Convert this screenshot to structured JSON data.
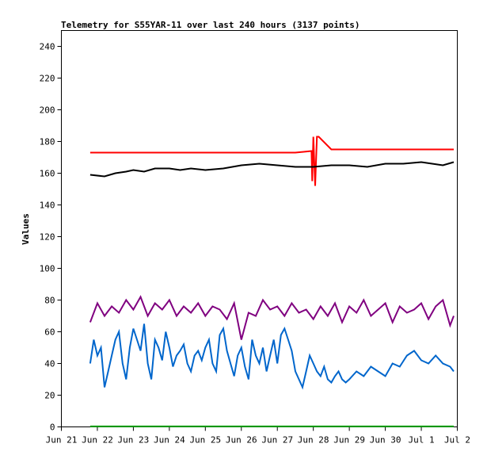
{
  "chart_data": {
    "type": "line",
    "title": "Telemetry for S55YAR-11 over last 240 hours (3137 points)",
    "ylabel": "Values",
    "xlabel": "",
    "ylim": [
      0,
      250
    ],
    "yticks": [
      0,
      20,
      40,
      60,
      80,
      100,
      120,
      140,
      160,
      180,
      200,
      220,
      240
    ],
    "xlim_days": [
      0,
      11
    ],
    "xticks": [
      {
        "day": 0,
        "label": "Jun 21"
      },
      {
        "day": 1,
        "label": "Jun 22"
      },
      {
        "day": 2,
        "label": "Jun 23"
      },
      {
        "day": 3,
        "label": "Jun 24"
      },
      {
        "day": 4,
        "label": "Jun 25"
      },
      {
        "day": 5,
        "label": "Jun 26"
      },
      {
        "day": 6,
        "label": "Jun 27"
      },
      {
        "day": 7,
        "label": "Jun 28"
      },
      {
        "day": 8,
        "label": "Jun 29"
      },
      {
        "day": 9,
        "label": "Jun 30"
      },
      {
        "day": 10,
        "label": "Jul 1"
      },
      {
        "day": 11,
        "label": "Jul 2"
      }
    ],
    "grid": false,
    "series": [
      {
        "color": "#ff0000",
        "x": [
          0.8,
          1.5,
          2.0,
          2.5,
          3.0,
          3.5,
          4.0,
          4.5,
          5.0,
          5.5,
          6.0,
          6.5,
          6.95,
          6.97,
          7.0,
          7.05,
          7.1,
          7.15,
          7.5,
          8.0,
          8.5,
          9.0,
          9.5,
          10.0,
          10.5,
          10.9
        ],
        "y": [
          173,
          173,
          173,
          173,
          173,
          173,
          173,
          173,
          173,
          173,
          173,
          173,
          174,
          155,
          183,
          152,
          183,
          183,
          175,
          175,
          175,
          175,
          175,
          175,
          175,
          175
        ]
      },
      {
        "color": "#000000",
        "x": [
          0.8,
          1.2,
          1.5,
          1.8,
          2.0,
          2.3,
          2.6,
          3.0,
          3.3,
          3.6,
          4.0,
          4.5,
          5.0,
          5.5,
          6.0,
          6.5,
          7.0,
          7.5,
          8.0,
          8.5,
          9.0,
          9.5,
          10.0,
          10.3,
          10.6,
          10.9
        ],
        "y": [
          159,
          158,
          160,
          161,
          162,
          161,
          163,
          163,
          162,
          163,
          162,
          163,
          165,
          166,
          165,
          164,
          164,
          165,
          165,
          164,
          166,
          166,
          167,
          166,
          165,
          167
        ]
      },
      {
        "color": "#800080",
        "x": [
          0.8,
          1.0,
          1.2,
          1.4,
          1.6,
          1.8,
          2.0,
          2.2,
          2.4,
          2.6,
          2.8,
          3.0,
          3.2,
          3.4,
          3.6,
          3.8,
          4.0,
          4.2,
          4.4,
          4.6,
          4.8,
          5.0,
          5.2,
          5.4,
          5.6,
          5.8,
          6.0,
          6.2,
          6.4,
          6.6,
          6.8,
          7.0,
          7.2,
          7.4,
          7.6,
          7.8,
          8.0,
          8.2,
          8.4,
          8.6,
          8.8,
          9.0,
          9.2,
          9.4,
          9.6,
          9.8,
          10.0,
          10.2,
          10.4,
          10.6,
          10.8,
          10.9
        ],
        "y": [
          66,
          78,
          70,
          76,
          72,
          80,
          74,
          82,
          70,
          78,
          74,
          80,
          70,
          76,
          72,
          78,
          70,
          76,
          74,
          68,
          78,
          55,
          72,
          70,
          80,
          74,
          76,
          70,
          78,
          72,
          74,
          68,
          76,
          70,
          78,
          66,
          76,
          72,
          80,
          70,
          74,
          78,
          66,
          76,
          72,
          74,
          78,
          68,
          76,
          80,
          64,
          70
        ]
      },
      {
        "color": "#0066cc",
        "x": [
          0.8,
          0.9,
          1.0,
          1.1,
          1.2,
          1.3,
          1.4,
          1.5,
          1.6,
          1.7,
          1.8,
          1.9,
          2.0,
          2.1,
          2.2,
          2.3,
          2.4,
          2.5,
          2.6,
          2.7,
          2.8,
          2.9,
          3.0,
          3.1,
          3.2,
          3.3,
          3.4,
          3.5,
          3.6,
          3.7,
          3.8,
          3.9,
          4.0,
          4.1,
          4.2,
          4.3,
          4.4,
          4.5,
          4.6,
          4.7,
          4.8,
          4.9,
          5.0,
          5.1,
          5.2,
          5.3,
          5.4,
          5.5,
          5.6,
          5.7,
          5.8,
          5.9,
          6.0,
          6.1,
          6.2,
          6.3,
          6.4,
          6.5,
          6.6,
          6.7,
          6.8,
          6.9,
          7.0,
          7.1,
          7.2,
          7.3,
          7.4,
          7.5,
          7.6,
          7.7,
          7.8,
          7.9,
          8.0,
          8.2,
          8.4,
          8.6,
          8.8,
          9.0,
          9.2,
          9.4,
          9.6,
          9.8,
          10.0,
          10.2,
          10.4,
          10.6,
          10.8,
          10.9
        ],
        "y": [
          40,
          55,
          45,
          50,
          25,
          35,
          45,
          55,
          60,
          40,
          30,
          50,
          62,
          55,
          48,
          65,
          40,
          30,
          55,
          50,
          42,
          60,
          50,
          38,
          45,
          48,
          52,
          40,
          35,
          45,
          48,
          42,
          50,
          55,
          40,
          35,
          58,
          62,
          48,
          40,
          32,
          45,
          50,
          38,
          30,
          55,
          45,
          40,
          50,
          35,
          45,
          55,
          40,
          58,
          62,
          55,
          48,
          35,
          30,
          25,
          35,
          45,
          40,
          35,
          32,
          38,
          30,
          28,
          32,
          35,
          30,
          28,
          30,
          35,
          32,
          38,
          35,
          32,
          40,
          38,
          45,
          48,
          42,
          40,
          45,
          40,
          38,
          35
        ]
      },
      {
        "color": "#00a000",
        "x": [
          0.8,
          10.9
        ],
        "y": [
          0.3,
          0.3
        ]
      }
    ]
  }
}
